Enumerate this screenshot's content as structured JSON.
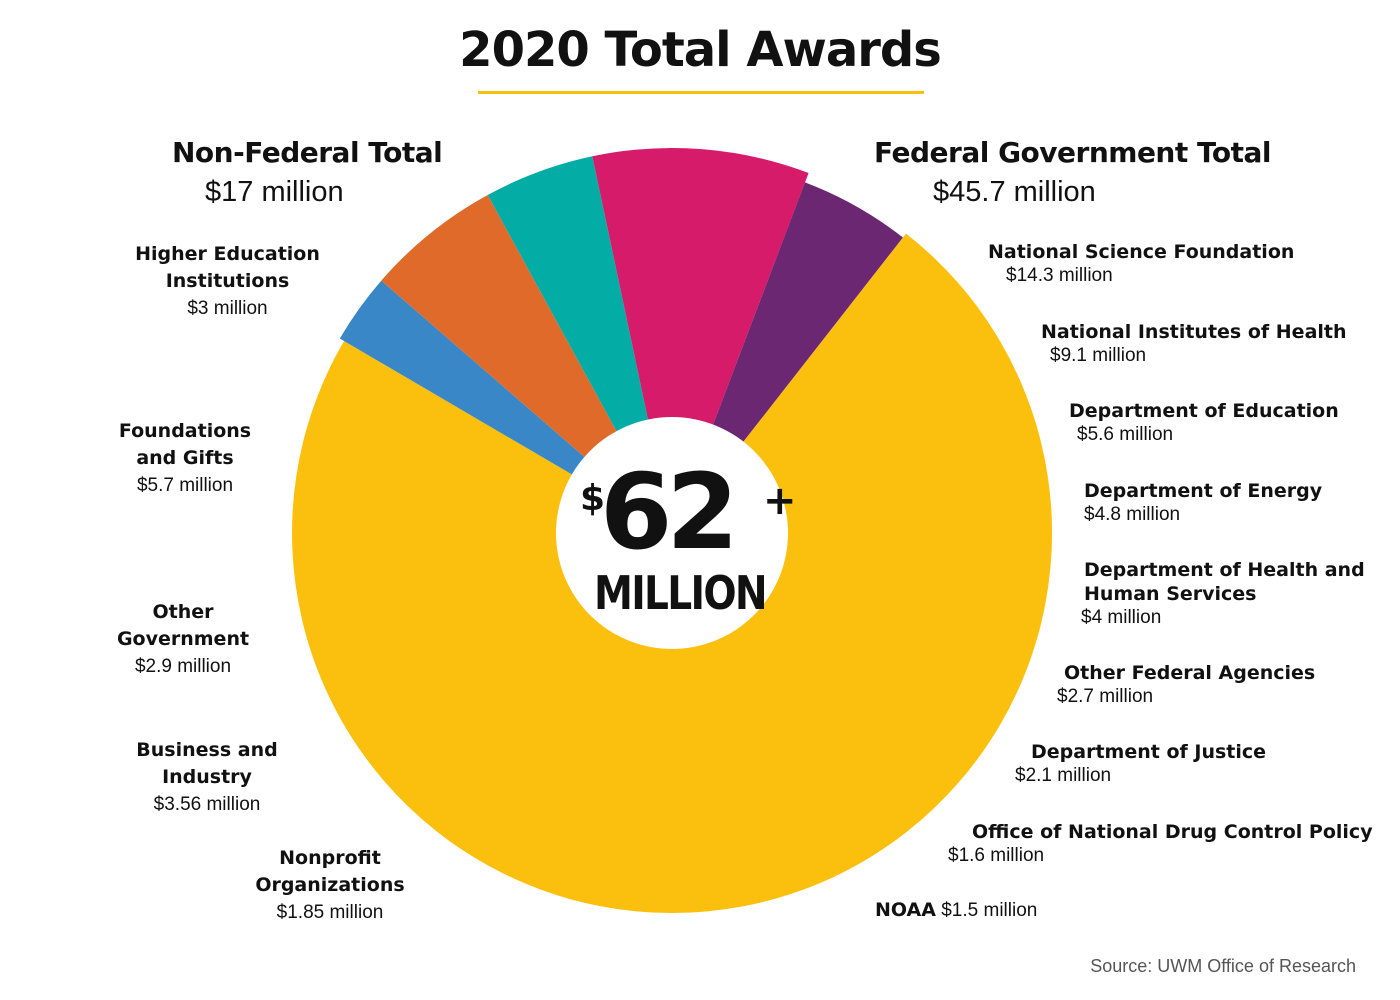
{
  "chart_data": {
    "type": "pie",
    "title": "2020 Total Awards",
    "center": {
      "currency": "$",
      "amount": "62",
      "plus": "+",
      "unit": "MILLION"
    },
    "groups": {
      "non_federal": {
        "heading": "Non-Federal Total",
        "total": "$17 million"
      },
      "federal": {
        "heading": "Federal Government Total",
        "total": "$45.7 million"
      }
    },
    "slices": [
      {
        "name": "Federal Government Total",
        "value": 45.7,
        "color": "#fbbf0e"
      },
      {
        "name": "Nonprofit Organizations",
        "value": 1.85,
        "color": "#3a87c8"
      },
      {
        "name": "Business and Industry",
        "value": 3.56,
        "color": "#e06a2a"
      },
      {
        "name": "Other Government",
        "value": 2.9,
        "color": "#03ada6"
      },
      {
        "name": "Foundations and Gifts",
        "value": 5.7,
        "color": "#d61b6a"
      },
      {
        "name": "Higher Education Institutions",
        "value": 3.0,
        "color": "#6b2771"
      }
    ],
    "non_federal_labels": [
      {
        "name": "Higher Education\nInstitutions",
        "value_label": "$3 million"
      },
      {
        "name": "Foundations\nand Gifts",
        "value_label": "$5.7 million"
      },
      {
        "name": "Other\nGovernment",
        "value_label": "$2.9 million"
      },
      {
        "name": "Business and\nIndustry",
        "value_label": "$3.56 million"
      },
      {
        "name": "Nonprofit\nOrganizations",
        "value_label": "$1.85 million"
      }
    ],
    "federal_breakdown": [
      {
        "name": "National Science Foundation",
        "value": 14.3,
        "value_label": "$14.3 million"
      },
      {
        "name": "National Institutes of Health",
        "value": 9.1,
        "value_label": "$9.1 million"
      },
      {
        "name": "Department of Education",
        "value": 5.6,
        "value_label": "$5.6 million"
      },
      {
        "name": "Department of Energy",
        "value": 4.8,
        "value_label": "$4.8 million"
      },
      {
        "name": "Department of Health and\nHuman Services",
        "value": 4.0,
        "value_label": "$4 million"
      },
      {
        "name": "Other Federal Agencies",
        "value": 2.7,
        "value_label": "$2.7 million"
      },
      {
        "name": "Department of Justice",
        "value": 2.1,
        "value_label": "$2.1 million"
      },
      {
        "name": "Office of National Drug Control Policy",
        "value": 1.6,
        "value_label": "$1.6 million"
      },
      {
        "name": "NOAA",
        "value": 1.5,
        "value_label": "$1.5 million"
      }
    ],
    "source": "Source: UWM Office of Research"
  }
}
